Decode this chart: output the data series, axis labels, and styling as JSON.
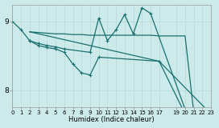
{
  "background_color": "#cceaea",
  "grid_color": "#b8d8d8",
  "line_color": "#1a7070",
  "xlabel": "Humidex (Indice chaleur)",
  "xlim": [
    0,
    23
  ],
  "ylim": [
    7.75,
    9.25
  ],
  "yticks": [
    8,
    9
  ],
  "xticks": [
    0,
    1,
    2,
    3,
    4,
    5,
    6,
    7,
    8,
    9,
    10,
    11,
    12,
    13,
    14,
    15,
    16,
    17,
    19,
    20,
    21,
    22,
    23
  ],
  "xtick_labels": [
    "0",
    "1",
    "2",
    "3",
    "4",
    "5",
    "6",
    "7",
    "8",
    "9",
    "10",
    "11",
    "12",
    "13",
    "14",
    "15",
    "16",
    "17",
    "19",
    "20",
    "21",
    "22",
    "23"
  ],
  "series": [
    {
      "x": [
        0,
        1,
        2,
        3,
        4,
        5,
        6,
        9,
        10,
        11,
        12,
        13,
        14,
        15,
        16,
        20,
        21,
        22,
        23
      ],
      "y": [
        9.0,
        8.88,
        8.72,
        8.68,
        8.65,
        8.63,
        8.6,
        8.55,
        9.05,
        8.72,
        8.88,
        9.1,
        8.82,
        9.2,
        9.12,
        7.72,
        7.65,
        7.62,
        7.62
      ],
      "marker": "+",
      "lw": 0.9
    },
    {
      "x": [
        2,
        3,
        4,
        5,
        6,
        7,
        8,
        9,
        10,
        11,
        12,
        13,
        14,
        15,
        16,
        17,
        20,
        21,
        22,
        23
      ],
      "y": [
        8.85,
        8.84,
        8.83,
        8.82,
        8.82,
        8.81,
        8.81,
        8.8,
        8.8,
        8.8,
        8.8,
        8.8,
        8.8,
        8.8,
        8.8,
        8.79,
        8.79,
        7.68,
        7.63,
        7.62
      ],
      "marker": null,
      "lw": 0.9
    },
    {
      "x": [
        2,
        3,
        4,
        5,
        6,
        7,
        8,
        9,
        10,
        17,
        20,
        21,
        22,
        23
      ],
      "y": [
        8.72,
        8.65,
        8.62,
        8.6,
        8.55,
        8.38,
        8.25,
        8.22,
        8.48,
        8.42,
        7.65,
        7.62,
        7.62,
        7.62
      ],
      "marker": "+",
      "lw": 0.9
    },
    {
      "x": [
        2,
        17,
        23
      ],
      "y": [
        8.85,
        8.42,
        7.65
      ],
      "marker": null,
      "lw": 0.9
    }
  ]
}
